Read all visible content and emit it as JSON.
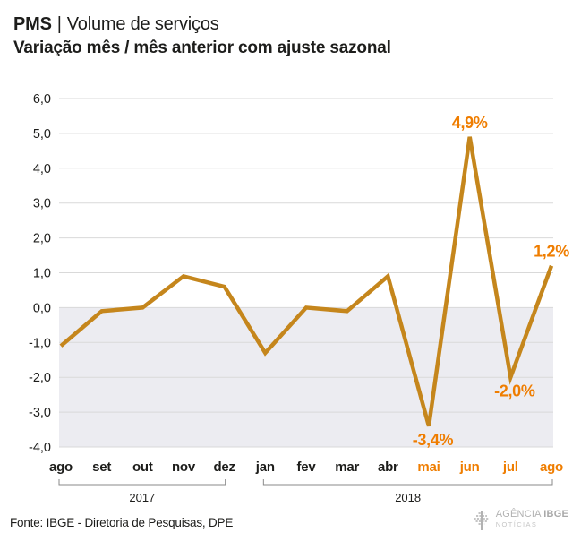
{
  "header": {
    "title_bold": "PMS",
    "title_separator": "|",
    "title_rest": "Volume de serviços",
    "subtitle": "Variação mês / mês anterior com ajuste sazonal"
  },
  "chart_data": {
    "type": "line",
    "title": "PMS | Volume de serviços",
    "subtitle": "Variação mês / mês anterior com ajuste sazonal",
    "xlabel": "",
    "ylabel": "",
    "categories": [
      "ago",
      "set",
      "out",
      "nov",
      "dez",
      "jan",
      "fev",
      "mar",
      "abr",
      "mai",
      "jun",
      "jul",
      "ago"
    ],
    "values": [
      -1.1,
      -0.1,
      0.0,
      0.9,
      0.6,
      -1.3,
      0.0,
      -0.1,
      0.9,
      -3.4,
      4.9,
      -2.0,
      1.2
    ],
    "ylim": [
      -4,
      6
    ],
    "y_ticks": [
      "6,0",
      "5,0",
      "4,0",
      "3,0",
      "2,0",
      "1,0",
      "0,0",
      "-1,0",
      "-2,0",
      "-3,0",
      "-4,0"
    ],
    "grid_on": true,
    "legend_position": "none",
    "highlight_from_index": 9,
    "data_labels": [
      {
        "index": 9,
        "text": "-3,4%",
        "position": "below"
      },
      {
        "index": 10,
        "text": "4,9%",
        "position": "above"
      },
      {
        "index": 11,
        "text": "-2,0%",
        "position": "below"
      },
      {
        "index": 12,
        "text": "1,2%",
        "position": "above"
      }
    ],
    "year_groups": [
      {
        "label": "2017",
        "from": 0,
        "to": 4
      },
      {
        "label": "2018",
        "from": 5,
        "to": 12
      }
    ],
    "colors": {
      "line": "#c5861c",
      "data_label": "#ef7d00",
      "highlight_month": "#ef7d00",
      "month": "#1d1d1b",
      "gridline": "#d9d9d9",
      "negative_band": "#ececf1",
      "bracket": "#8a8a8a"
    }
  },
  "footer": {
    "source": "Fonte: IBGE - Diretoria de Pesquisas, DPE",
    "logo": {
      "icon": "ibge-tree-icon",
      "agency": "AGÊNCIA",
      "brand": "IBGE",
      "sub": "NOTÍCIAS"
    }
  }
}
